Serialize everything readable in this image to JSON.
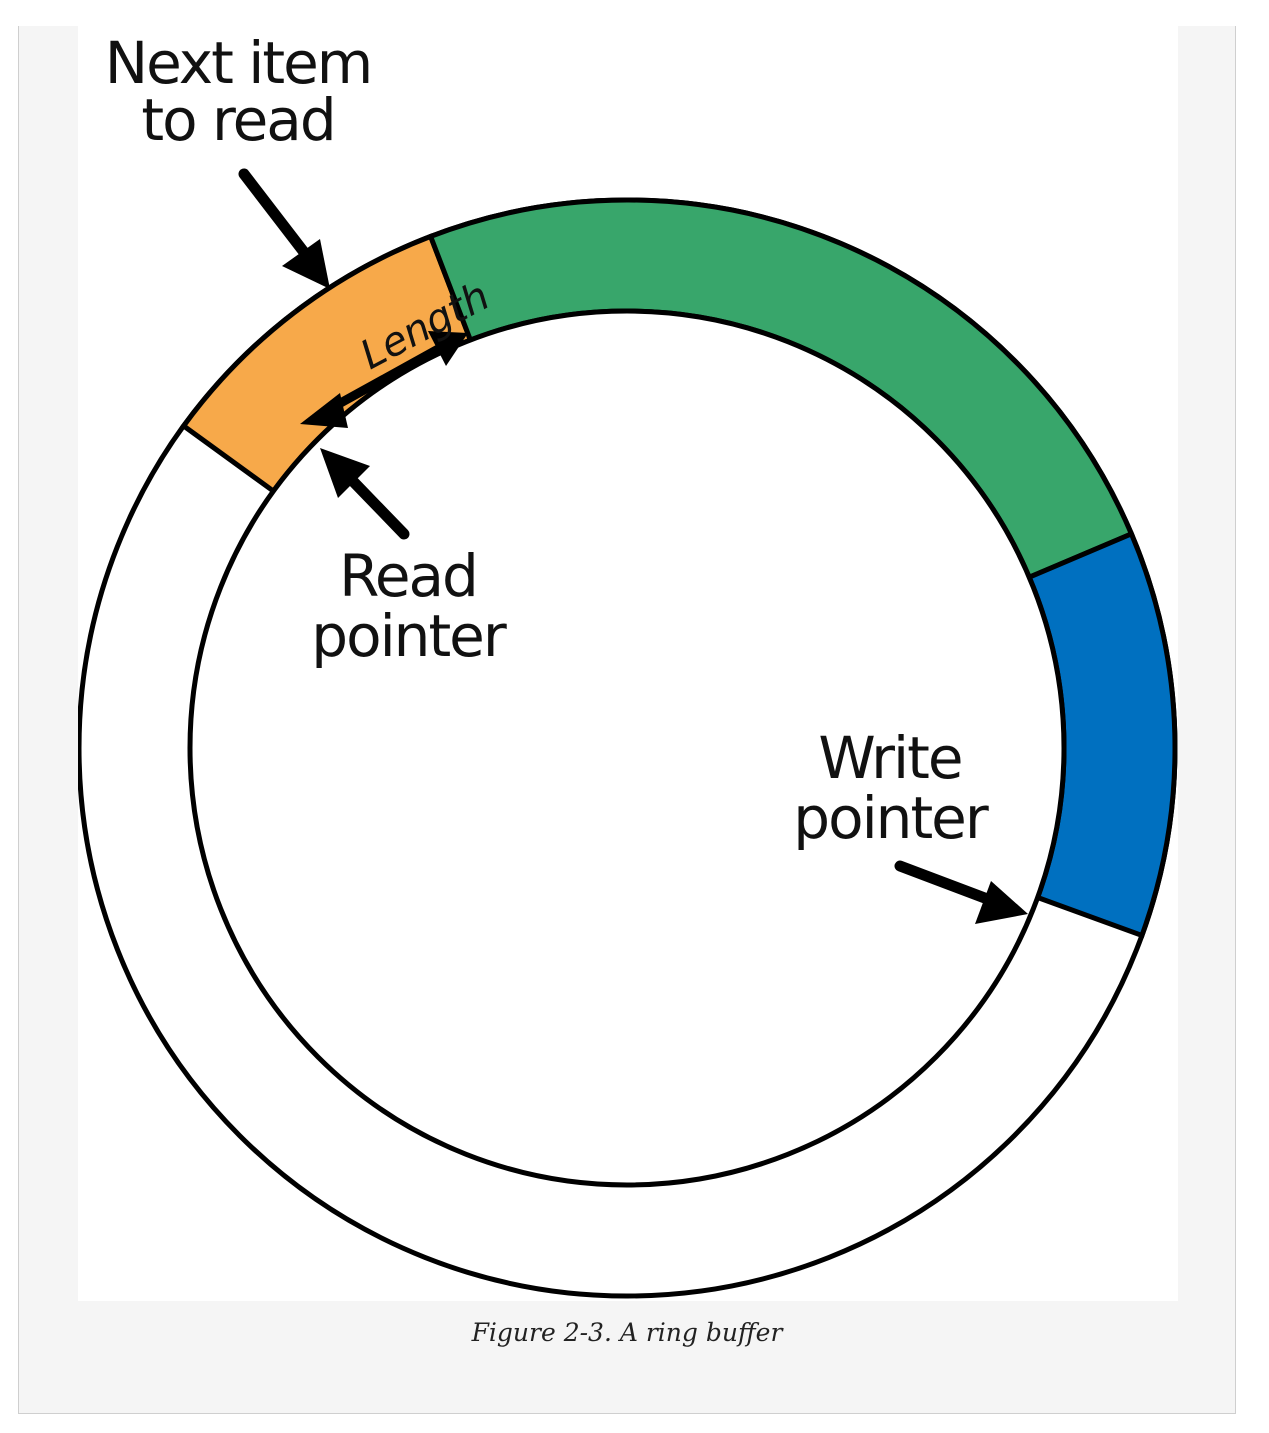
{
  "figure": {
    "caption": "Figure 2-3. A ring buffer",
    "labels": {
      "next_item_line1": "Next item",
      "next_item_line2": "to read",
      "length": "Length",
      "read_line1": "Read",
      "read_line2": "pointer",
      "write_line1": "Write",
      "write_line2": "pointer"
    },
    "colors": {
      "next_item": "#f7a94a",
      "unread_data": "#38a66b",
      "written_item": "#0070c0",
      "ring": "#ffffff",
      "outline": "#000000"
    },
    "segments": [
      {
        "name": "next-item",
        "start_deg": 216,
        "end_deg": 249,
        "color_key": "next_item"
      },
      {
        "name": "unread-data",
        "start_deg": 249,
        "end_deg": 337,
        "color_key": "unread_data"
      },
      {
        "name": "written-item",
        "start_deg": 337,
        "end_deg": 380,
        "color_key": "written_item"
      }
    ]
  }
}
